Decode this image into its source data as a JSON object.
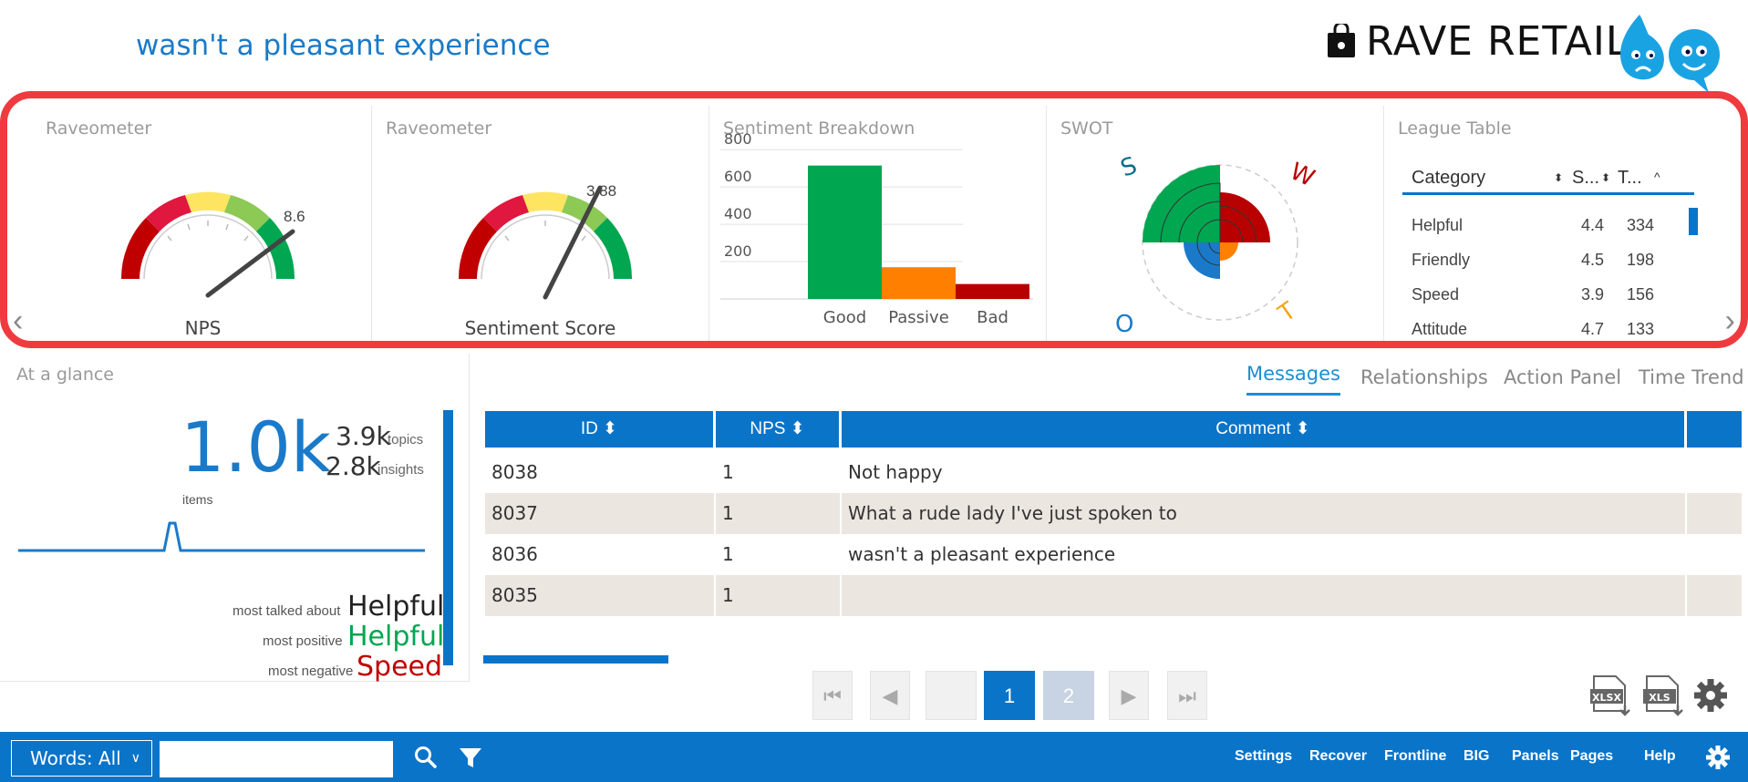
{
  "header": {
    "title": "wasn't a pleasant experience",
    "brand": "RAVE RETAIL"
  },
  "panels": {
    "nps_gauge": {
      "title": "Raveometer",
      "caption": "NPS",
      "value": "8.6"
    },
    "sentiment_gauge": {
      "title": "Raveometer",
      "caption": "Sentiment Score",
      "value": "3.88"
    },
    "sentiment_breakdown": {
      "title": "Sentiment Breakdown"
    },
    "swot": {
      "title": "SWOT",
      "s": "S",
      "w": "W",
      "o": "O",
      "t": "T"
    },
    "league_table": {
      "title": "League Table",
      "columns": [
        "Category",
        "S...",
        "T..."
      ],
      "rows": [
        {
          "category": "Helpful",
          "s": "4.4",
          "t": "334"
        },
        {
          "category": "Friendly",
          "s": "4.5",
          "t": "198"
        },
        {
          "category": "Speed",
          "s": "3.9",
          "t": "156"
        },
        {
          "category": "Attitude",
          "s": "4.7",
          "t": "133"
        }
      ]
    }
  },
  "chart_data": {
    "type": "bar",
    "categories": [
      "Good",
      "Passive",
      "Bad"
    ],
    "values": [
      715,
      170,
      80
    ],
    "ylim": [
      0,
      850
    ],
    "yticks": [
      200,
      400,
      600,
      800
    ],
    "colors": [
      "#00a650",
      "#ff7f00",
      "#b80000"
    ],
    "grid": true
  },
  "glance": {
    "title": "At a glance",
    "items_value": "1.0k",
    "items_label": "items",
    "topics_value": "3.9k",
    "topics_label": "topics",
    "insights_value": "2.8k",
    "insights_label": "insights",
    "most_talked_label": "most talked about",
    "most_talked_word": "Helpful",
    "most_positive_label": "most positive",
    "most_positive_word": "Helpful",
    "most_negative_label": "most negative",
    "most_negative_word": "Speed"
  },
  "tabs": [
    "Messages",
    "Relationships",
    "Action Panel",
    "Time Trend"
  ],
  "messages": {
    "headers": {
      "id": "ID",
      "nps": "NPS",
      "comment": "Comment"
    },
    "rows": [
      {
        "id": "8038",
        "nps": "1",
        "comment": "Not happy"
      },
      {
        "id": "8037",
        "nps": "1",
        "comment": "What a rude lady I've just spoken to"
      },
      {
        "id": "8036",
        "nps": "1",
        "comment": "wasn't a pleasant experience"
      },
      {
        "id": "8035",
        "nps": "1",
        "comment": ""
      }
    ]
  },
  "pagination": {
    "page1": "1",
    "page2": "2"
  },
  "exports": {
    "xlsx": "XLSX",
    "xls": "XLS"
  },
  "bottom_bar": {
    "words_select": "Words: All",
    "search_value": "",
    "menu": [
      "Settings",
      "Recover",
      "Frontline",
      "BIG",
      "Panels",
      "Pages",
      "Help"
    ]
  },
  "colors": {
    "accent": "#0a74c9",
    "highlight_border": "#ef3b3f",
    "good": "#00a650",
    "bad": "#b80000"
  }
}
